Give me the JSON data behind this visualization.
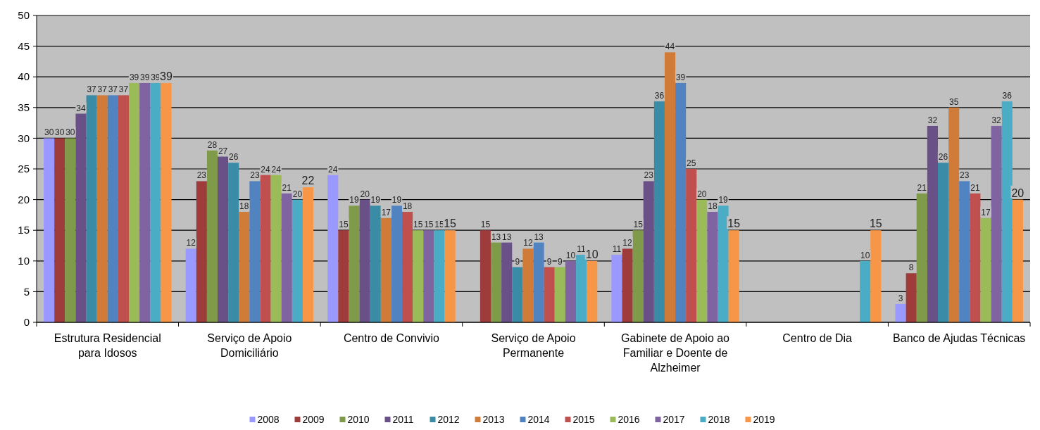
{
  "chart_data": {
    "type": "bar",
    "categories": [
      "Estrutura Residencial para Idosos",
      "Serviço de Apoio Domiciliário",
      "Centro de Convivio",
      "Serviço de Apoio Permanente",
      "Gabinete de Apoio ao Familiar e Doente de Alzheimer",
      "Centro de Dia",
      "Banco de Ajudas Técnicas"
    ],
    "series": [
      {
        "name": "2008",
        "color": "#9999ff",
        "values": [
          30,
          12,
          24,
          null,
          11,
          null,
          3
        ]
      },
      {
        "name": "2009",
        "color": "#9e3b3b",
        "values": [
          30,
          23,
          15,
          15,
          12,
          null,
          8
        ]
      },
      {
        "name": "2010",
        "color": "#7f9a48",
        "values": [
          30,
          28,
          19,
          13,
          15,
          null,
          21
        ]
      },
      {
        "name": "2011",
        "color": "#695087",
        "values": [
          34,
          27,
          20,
          13,
          23,
          null,
          32
        ]
      },
      {
        "name": "2012",
        "color": "#3a8ba5",
        "values": [
          37,
          26,
          19,
          9,
          36,
          null,
          26
        ]
      },
      {
        "name": "2013",
        "color": "#d07c38",
        "values": [
          37,
          18,
          17,
          12,
          44,
          null,
          35
        ]
      },
      {
        "name": "2014",
        "color": "#5183c0",
        "values": [
          37,
          23,
          19,
          13,
          39,
          null,
          23
        ]
      },
      {
        "name": "2015",
        "color": "#c0504d",
        "values": [
          37,
          24,
          18,
          9,
          25,
          null,
          21
        ]
      },
      {
        "name": "2016",
        "color": "#9bbb59",
        "values": [
          39,
          24,
          15,
          9,
          20,
          null,
          17
        ]
      },
      {
        "name": "2017",
        "color": "#8064a2",
        "values": [
          39,
          21,
          15,
          10,
          18,
          null,
          32
        ]
      },
      {
        "name": "2018",
        "color": "#4bacc6",
        "values": [
          39,
          20,
          15,
          11,
          19,
          10,
          36
        ]
      },
      {
        "name": "2019",
        "color": "#f79646",
        "values": [
          39,
          22,
          15,
          10,
          15,
          15,
          20
        ]
      }
    ],
    "ylim": [
      0,
      50
    ],
    "yticks": [
      0,
      5,
      10,
      15,
      20,
      25,
      30,
      35,
      40,
      45,
      50
    ],
    "grid": "y",
    "legend": "bottom",
    "data_labels": true
  }
}
